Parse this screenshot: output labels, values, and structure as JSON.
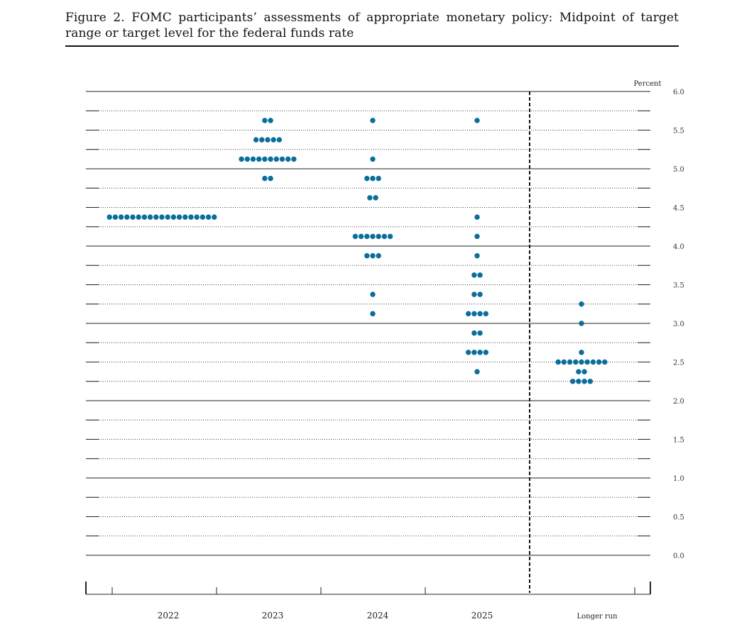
{
  "figure": {
    "title": "Figure 2.  FOMC participants’ assessments of appropriate monetary policy:  Midpoint of target range or target level for the federal funds rate"
  },
  "chart_data": {
    "type": "scatter",
    "title": "Figure 2.  FOMC participants’ assessments of appropriate monetary policy:  Midpoint of target range or target level for the federal funds rate",
    "ylabel": "Percent",
    "xlabel": "",
    "ylim": [
      0,
      6
    ],
    "yticks": [
      "0.0",
      "0.5",
      "1.0",
      "1.5",
      "2.0",
      "2.5",
      "3.0",
      "3.5",
      "4.0",
      "4.5",
      "5.0",
      "5.5",
      "6.0"
    ],
    "y_gridlines": "every 0.25 dotted, every 1.0 solid",
    "categories": [
      "2022",
      "2023",
      "2024",
      "2025",
      "Longer run"
    ],
    "longer_run_separator": "dashed vertical line before Longer run",
    "dot_color": "#0a6e9c",
    "dots": [
      {
        "category": "2022",
        "points": [
          {
            "rate": 4.375,
            "count": 19
          }
        ]
      },
      {
        "category": "2023",
        "points": [
          {
            "rate": 5.625,
            "count": 2
          },
          {
            "rate": 5.375,
            "count": 5
          },
          {
            "rate": 5.125,
            "count": 10
          },
          {
            "rate": 4.875,
            "count": 2
          }
        ]
      },
      {
        "category": "2024",
        "points": [
          {
            "rate": 5.625,
            "count": 1
          },
          {
            "rate": 5.125,
            "count": 1
          },
          {
            "rate": 4.875,
            "count": 3
          },
          {
            "rate": 4.625,
            "count": 2
          },
          {
            "rate": 4.125,
            "count": 7
          },
          {
            "rate": 3.875,
            "count": 3
          },
          {
            "rate": 3.375,
            "count": 1
          },
          {
            "rate": 3.125,
            "count": 1
          }
        ]
      },
      {
        "category": "2025",
        "points": [
          {
            "rate": 5.625,
            "count": 1
          },
          {
            "rate": 4.375,
            "count": 1
          },
          {
            "rate": 4.125,
            "count": 1
          },
          {
            "rate": 3.875,
            "count": 1
          },
          {
            "rate": 3.625,
            "count": 2
          },
          {
            "rate": 3.375,
            "count": 2
          },
          {
            "rate": 3.125,
            "count": 4
          },
          {
            "rate": 2.875,
            "count": 2
          },
          {
            "rate": 2.625,
            "count": 4
          },
          {
            "rate": 2.375,
            "count": 1
          }
        ]
      },
      {
        "category": "Longer run",
        "points": [
          {
            "rate": 3.25,
            "count": 1
          },
          {
            "rate": 3.0,
            "count": 1
          },
          {
            "rate": 2.625,
            "count": 1
          },
          {
            "rate": 2.5,
            "count": 9
          },
          {
            "rate": 2.375,
            "count": 2
          },
          {
            "rate": 2.25,
            "count": 4
          }
        ]
      }
    ]
  }
}
